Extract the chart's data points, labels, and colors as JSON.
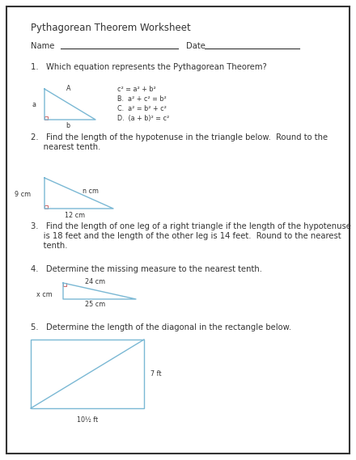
{
  "title": "Pythagorean Theorem Worksheet",
  "bg_color": "#ffffff",
  "border_color": "#333333",
  "text_color": "#333333",
  "blue_color": "#7ab8d4",
  "red_color": "#cc6666",
  "q1_text": "1.   Which equation represents the Pythagorean Theorem?",
  "q1_options": [
    "c² = a² + b²",
    "B.  a² + c² = b²",
    "C.  a² = b² + c²",
    "D.  (a + b)² = c²"
  ],
  "q2_text_l1": "2.   Find the length of the hypotenuse in the triangle below.  Round to the",
  "q2_text_l2": "     nearest tenth.",
  "q3_text_l1": "3.   Find the length of one leg of a right triangle if the length of the hypotenuse",
  "q3_text_l2": "     is 18 feet and the length of the other leg is 14 feet.  Round to the nearest",
  "q3_text_l3": "     tenth.",
  "q4_text": "4.   Determine the missing measure to the nearest tenth.",
  "q5_text": "5.   Determine the length of the diagonal in the rectangle below.",
  "q4_label_24cm": "24 cm",
  "q4_label_25cm": "25 cm",
  "q4_label_xcm": "x cm",
  "q2_label_9cm": "9 cm",
  "q2_label_12cm": "12 cm",
  "q2_label_ncm": "n cm",
  "q5_label_7ft": "7 ft",
  "q5_label_10ft": "10½ ft",
  "q1_label_A": "A",
  "q1_label_a": "a",
  "q1_label_b": "b",
  "font_size_title": 8.5,
  "font_size_body": 7.2,
  "font_size_small": 5.8
}
